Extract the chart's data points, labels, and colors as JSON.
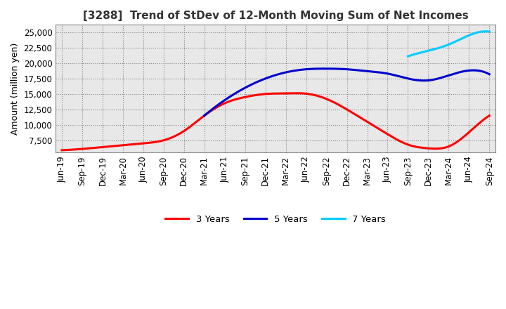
{
  "title": "[3288]  Trend of StDev of 12-Month Moving Sum of Net Incomes",
  "ylabel": "Amount (million yen)",
  "ylim": [
    5500,
    26200
  ],
  "yticks": [
    7500,
    10000,
    12500,
    15000,
    17500,
    20000,
    22500,
    25000
  ],
  "x_labels": [
    "Jun-19",
    "Sep-19",
    "Dec-19",
    "Mar-20",
    "Jun-20",
    "Sep-20",
    "Dec-20",
    "Mar-21",
    "Jun-21",
    "Sep-21",
    "Dec-21",
    "Mar-22",
    "Jun-22",
    "Sep-22",
    "Dec-22",
    "Mar-23",
    "Jun-23",
    "Sep-23",
    "Dec-23",
    "Mar-24",
    "Jun-24",
    "Sep-24"
  ],
  "series": {
    "3 Years": {
      "color": "#FF0000",
      "data": [
        5900,
        6100,
        6400,
        6700,
        7000,
        7500,
        9000,
        11500,
        13500,
        14500,
        15000,
        15100,
        15050,
        14200,
        12500,
        10500,
        8500,
        6800,
        6200,
        6500,
        8800,
        11500
      ]
    },
    "5 Years": {
      "color": "#0000CC",
      "data": [
        null,
        null,
        null,
        null,
        null,
        null,
        null,
        11500,
        14000,
        16000,
        17500,
        18500,
        19000,
        19100,
        19000,
        18700,
        18300,
        17500,
        17200,
        18000,
        18800,
        18200
      ]
    },
    "7 Years": {
      "color": "#00CCFF",
      "data": [
        null,
        null,
        null,
        null,
        null,
        null,
        null,
        null,
        null,
        null,
        null,
        null,
        null,
        null,
        null,
        null,
        null,
        21100,
        22000,
        23000,
        24500,
        25100
      ]
    },
    "10 Years": {
      "color": "#008000",
      "data": [
        null,
        null,
        null,
        null,
        null,
        null,
        null,
        null,
        null,
        null,
        null,
        null,
        null,
        null,
        null,
        null,
        null,
        null,
        null,
        null,
        null,
        null
      ]
    }
  },
  "grid": true,
  "title_fontsize": 11,
  "axis_fontsize": 9,
  "tick_fontsize": 8.5,
  "background_color": "#e8e8e8"
}
